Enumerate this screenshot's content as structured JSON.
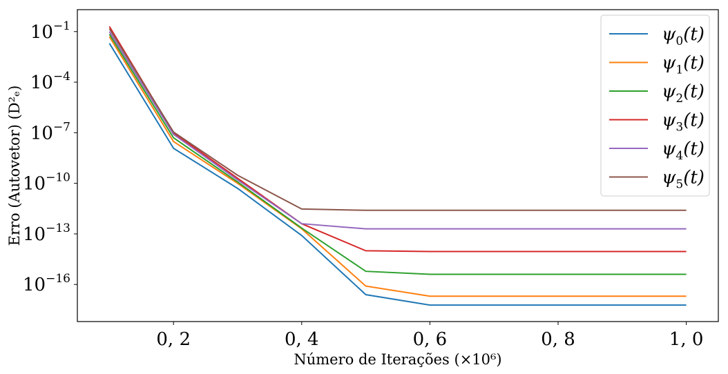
{
  "chart_data": {
    "type": "line",
    "x": [
      0.1,
      0.2,
      0.3,
      0.4,
      0.5,
      0.6,
      0.7,
      0.8,
      0.9,
      1.0
    ],
    "x_ticks": [
      {
        "value": 0.2,
        "label": "0, 2"
      },
      {
        "value": 0.4,
        "label": "0, 4"
      },
      {
        "value": 0.6,
        "label": "0, 6"
      },
      {
        "value": 0.8,
        "label": "0, 8"
      },
      {
        "value": 1.0,
        "label": "1, 0"
      }
    ],
    "y_ticks": [
      {
        "exponent": -1,
        "base": "10",
        "sup": "−1"
      },
      {
        "exponent": -4,
        "base": "10",
        "sup": "−4"
      },
      {
        "exponent": -7,
        "base": "10",
        "sup": "−7"
      },
      {
        "exponent": -10,
        "base": "10",
        "sup": "−10"
      },
      {
        "exponent": -13,
        "base": "10",
        "sup": "−13"
      },
      {
        "exponent": -16,
        "base": "10",
        "sup": "−16"
      }
    ],
    "xlim": [
      0.05,
      1.05
    ],
    "ylim_log10": [
      -18.2,
      0.3
    ],
    "yscale": "log",
    "xlabel": "Número de Iterações (×10⁶)",
    "ylabel": "Erro (Autovetor) (D²ₑ)",
    "grid": false,
    "legend_position": "top-right",
    "series": [
      {
        "name": "ψ",
        "sub": "0",
        "arg": "(t)",
        "color": "#1f77b4",
        "y": [
          0.02,
          1.2e-08,
          5e-11,
          8e-14,
          2.5e-17,
          6e-18,
          6e-18,
          6e-18,
          6e-18,
          6e-18
        ]
      },
      {
        "name": "ψ",
        "sub": "1",
        "arg": "(t)",
        "color": "#ff7f0e",
        "y": [
          0.05,
          3e-08,
          1e-10,
          2e-13,
          8e-17,
          2e-17,
          2e-17,
          2e-17,
          2e-17,
          2e-17
        ]
      },
      {
        "name": "ψ",
        "sub": "2",
        "arg": "(t)",
        "color": "#2ca02c",
        "y": [
          0.07,
          5e-08,
          1.2e-10,
          2.2e-13,
          6e-16,
          4e-16,
          4e-16,
          4e-16,
          4e-16,
          4e-16
        ]
      },
      {
        "name": "ψ",
        "sub": "3",
        "arg": "(t)",
        "color": "#d62728",
        "y": [
          0.2,
          1e-07,
          2e-10,
          4e-13,
          1e-14,
          9e-15,
          9e-15,
          9e-15,
          9e-15,
          9e-15
        ]
      },
      {
        "name": "ψ",
        "sub": "4",
        "arg": "(t)",
        "color": "#9467bd",
        "y": [
          0.1,
          8e-08,
          1.6e-10,
          4e-13,
          2e-13,
          2e-13,
          2e-13,
          2e-13,
          2e-13,
          2e-13
        ]
      },
      {
        "name": "ψ",
        "sub": "5",
        "arg": "(t)",
        "color": "#8c564b",
        "y": [
          0.15,
          1.1e-07,
          3e-10,
          3e-12,
          2.5e-12,
          2.5e-12,
          2.5e-12,
          2.5e-12,
          2.5e-12,
          2.5e-12
        ]
      }
    ]
  }
}
